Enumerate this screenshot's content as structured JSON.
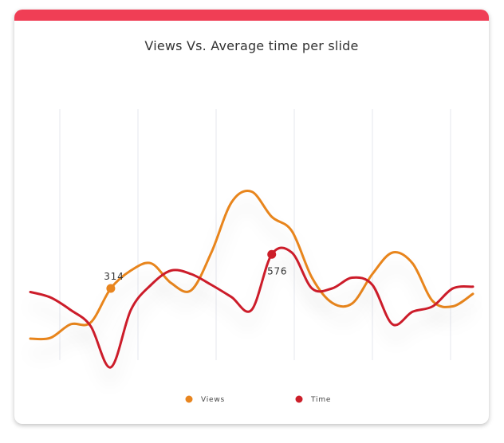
{
  "card": {
    "accent_color": "#f03e55"
  },
  "chart_data": {
    "type": "line",
    "title": "Views Vs. Average time per slide",
    "xlabel": "",
    "ylabel": "",
    "x_count": 23,
    "grid": {
      "vertical": true,
      "horizontal": false
    },
    "legend_position": "bottom",
    "ylim": [
      200,
      900
    ],
    "series": [
      {
        "name": "Views",
        "color": "#e8851f",
        "values": [
          260,
          262,
          300,
          305,
          400,
          450,
          470,
          415,
          395,
          500,
          640,
          670,
          600,
          560,
          430,
          360,
          358,
          440,
          500,
          470,
          365,
          350,
          385
        ]
      },
      {
        "name": "Time",
        "color": "#cc1f2a",
        "values": [
          390,
          375,
          340,
          295,
          180,
          340,
          410,
          450,
          440,
          410,
          376,
          340,
          495,
          500,
          400,
          400,
          430,
          410,
          300,
          335,
          350,
          400,
          405
        ]
      }
    ],
    "annotations": [
      {
        "series": "Views",
        "index": 4,
        "label": "314"
      },
      {
        "series": "Time",
        "index": 12,
        "label": "576"
      }
    ]
  }
}
